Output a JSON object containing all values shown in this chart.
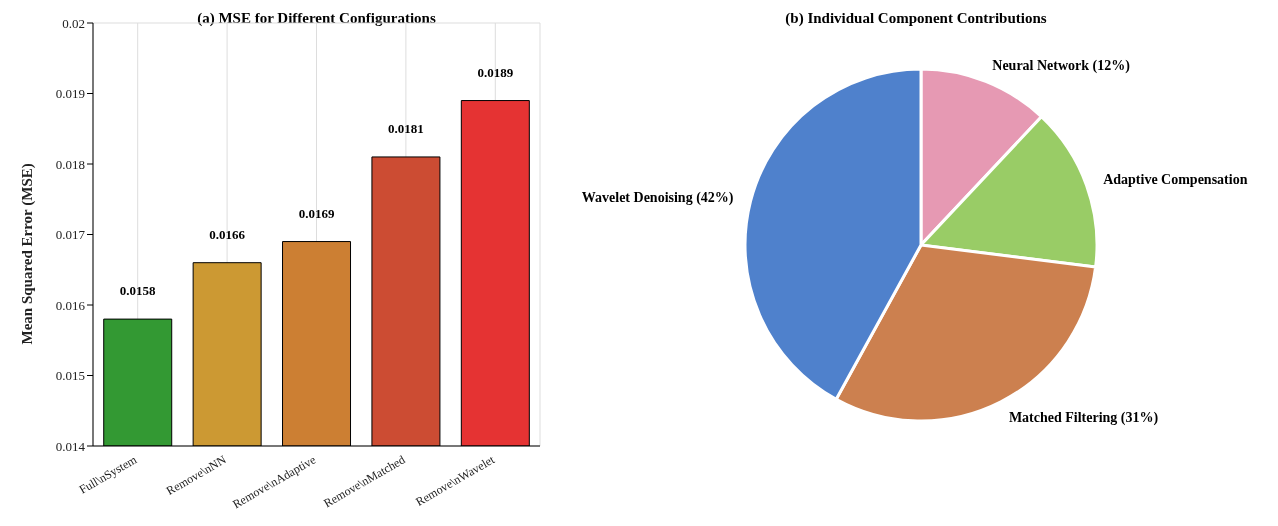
{
  "chart_data": [
    {
      "type": "bar",
      "title": "(a) MSE for Different Configurations",
      "ylabel": "Mean Squared Error (MSE)",
      "categories": [
        "Full\\nSystem",
        "Remove\\nNN",
        "Remove\\nAdaptive",
        "Remove\\nMatched",
        "Remove\\nWavelet"
      ],
      "values": [
        0.0158,
        0.0166,
        0.0169,
        0.0181,
        0.0189
      ],
      "colors": [
        "#339933",
        "#cc9933",
        "#cc7f33",
        "#cc4c33",
        "#e53333"
      ],
      "ylim": [
        0.014,
        0.02
      ],
      "yticks": [
        0.014,
        0.015,
        0.016,
        0.017,
        0.018,
        0.019,
        0.02
      ],
      "grid": true,
      "data_labels": true
    },
    {
      "type": "pie",
      "title": "(b) Individual Component Contributions",
      "categories": [
        "Neural Network (12%)",
        "Adaptive Compensation",
        "Matched Filtering (31%)",
        "Wavelet Denoising (42%)"
      ],
      "values": [
        12,
        15,
        31,
        42
      ],
      "colors": [
        "#e699b3",
        "#99cc66",
        "#cc804f",
        "#4f81cc"
      ]
    }
  ]
}
